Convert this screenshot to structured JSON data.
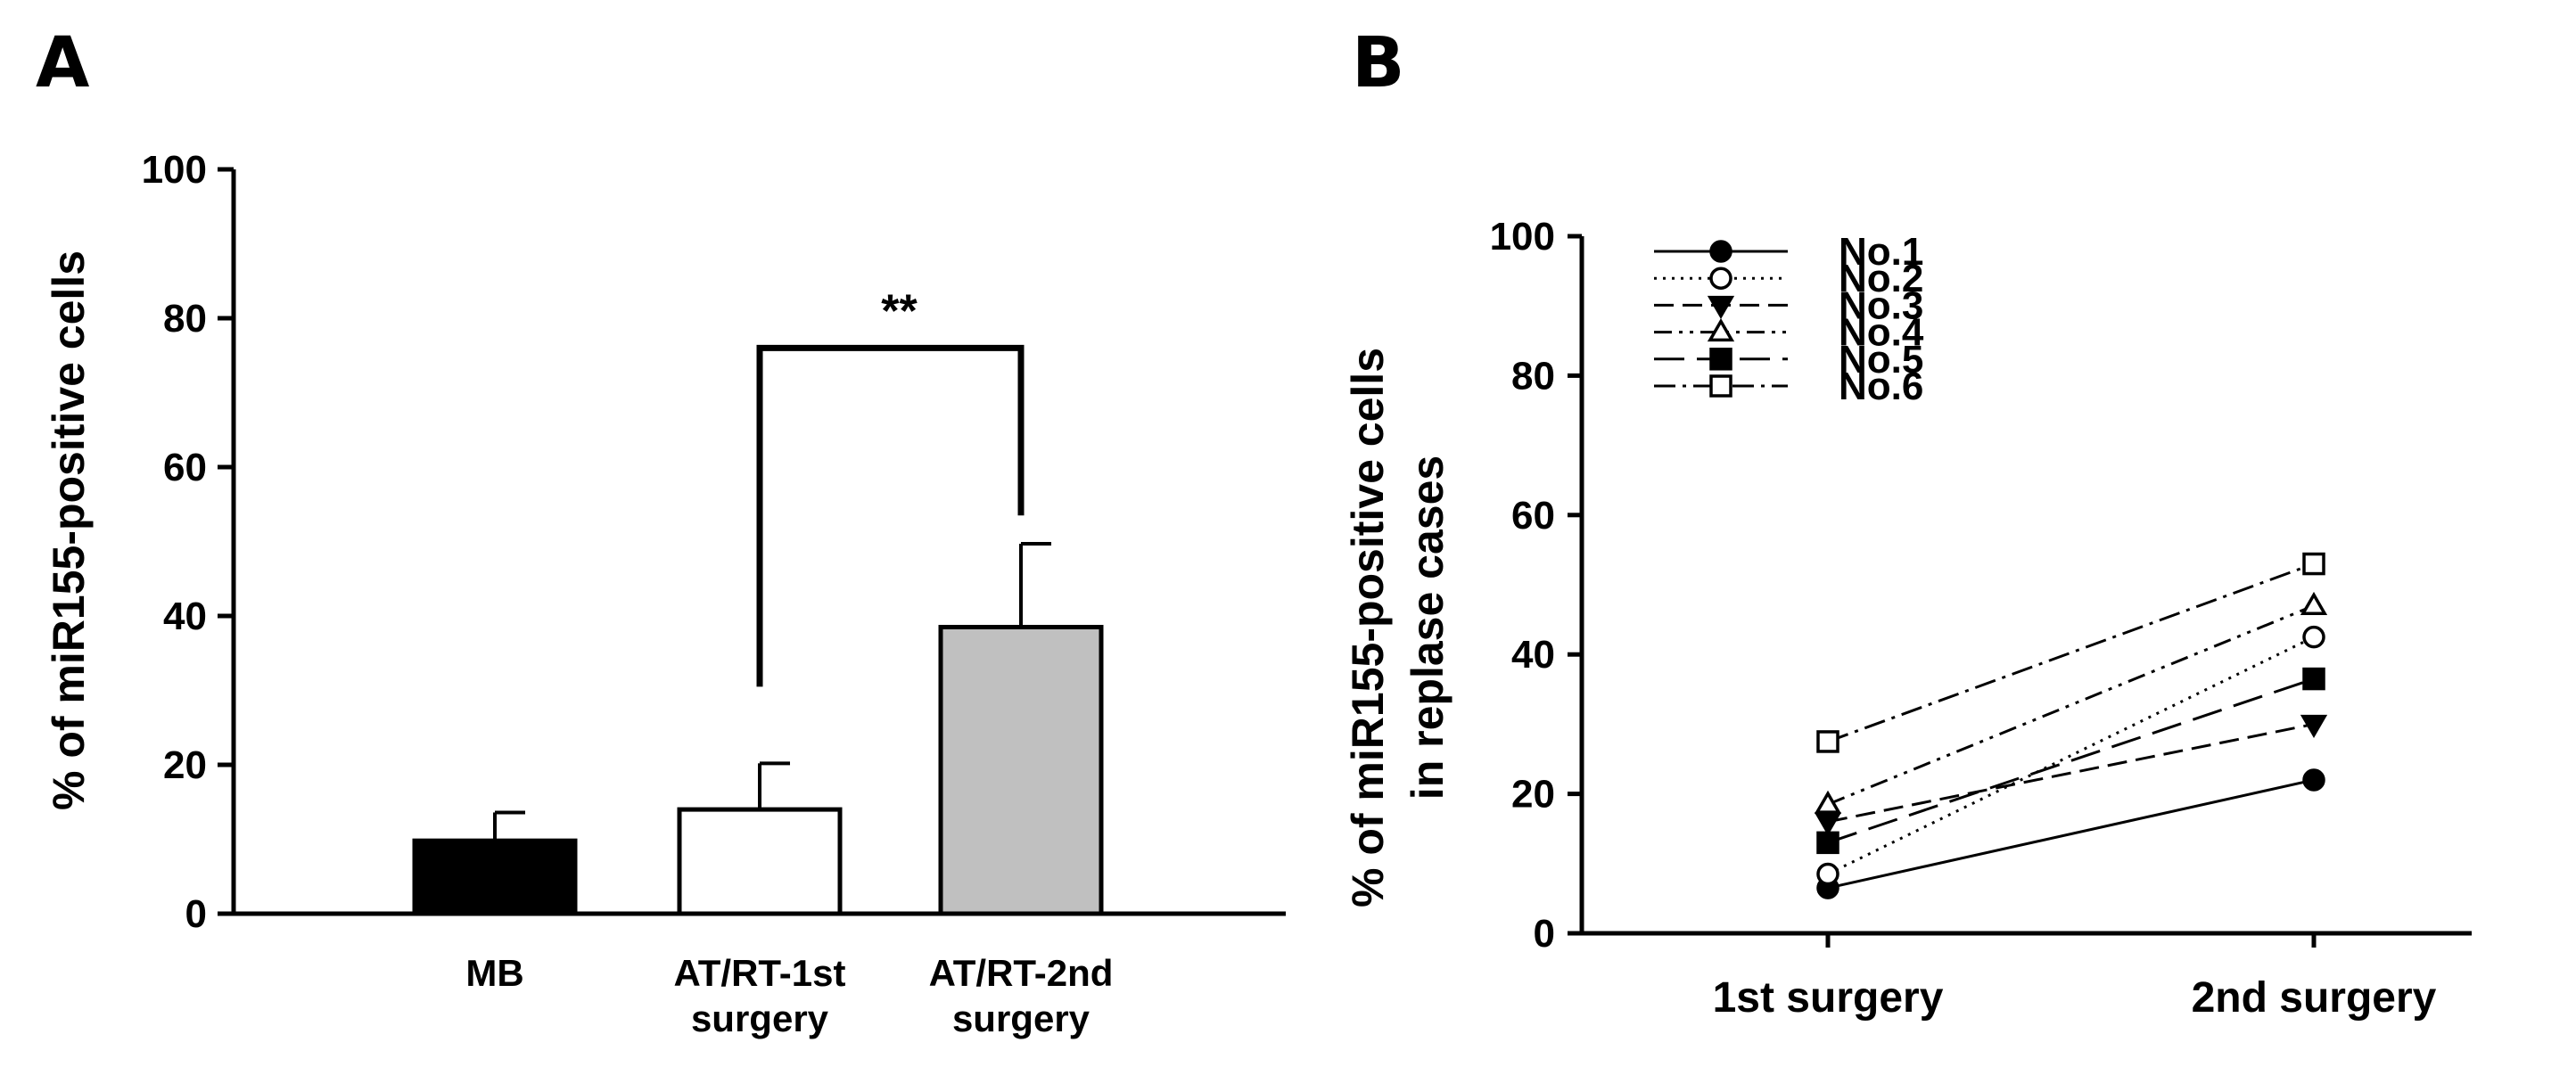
{
  "panels": {
    "a": {
      "label": "A",
      "chart_data": {
        "type": "bar",
        "title": "",
        "xlabel": "",
        "ylabel": "% of miR155-positive cells",
        "ylim": [
          0,
          100
        ],
        "yticks": [
          0,
          20,
          40,
          60,
          80,
          100
        ],
        "categories": [
          {
            "name": "MB",
            "lines": [
              "MB"
            ]
          },
          {
            "name": "AT/RT-1st surgery",
            "lines": [
              "AT/RT-1st",
              "surgery"
            ]
          },
          {
            "name": "AT/RT-2nd surgery",
            "lines": [
              "AT/RT-2nd",
              "surgery"
            ]
          }
        ],
        "values": [
          9.8,
          14.0,
          38.5
        ],
        "errors": [
          3.8,
          6.2,
          11.2
        ],
        "colors": [
          "#000000",
          "#ffffff",
          "#c0c0c0"
        ],
        "significance": {
          "from": 1,
          "to": 2,
          "label": "**",
          "y": 76
        }
      }
    },
    "b": {
      "label": "B",
      "chart_data": {
        "type": "line",
        "title": "",
        "xlabel": "",
        "ylabel_lines": [
          "% of miR155-positive cells",
          "in replase cases"
        ],
        "ylim": [
          0,
          100
        ],
        "yticks": [
          0,
          20,
          40,
          60,
          80,
          100
        ],
        "categories": [
          "1st surgery",
          "2nd surgery"
        ],
        "legend_position": "top-left",
        "series": [
          {
            "name": "No.1",
            "values": [
              6.5,
              22.0
            ],
            "marker": "circle",
            "filled": true,
            "dash": ""
          },
          {
            "name": "No.2",
            "values": [
              8.5,
              42.5
            ],
            "marker": "circle",
            "filled": false,
            "dash": "3 7"
          },
          {
            "name": "No.3",
            "values": [
              16.0,
              30.0
            ],
            "marker": "triangle-down",
            "filled": true,
            "dash": "22 10"
          },
          {
            "name": "No.4",
            "values": [
              18.5,
              47.0
            ],
            "marker": "triangle-up",
            "filled": false,
            "dash": "20 8 4 8 4 8"
          },
          {
            "name": "No.5",
            "values": [
              13.0,
              36.5
            ],
            "marker": "square",
            "filled": true,
            "dash": "34 14"
          },
          {
            "name": "No.6",
            "values": [
              27.5,
              53.0
            ],
            "marker": "square",
            "filled": false,
            "dash": "24 8 4 8"
          }
        ]
      }
    }
  }
}
